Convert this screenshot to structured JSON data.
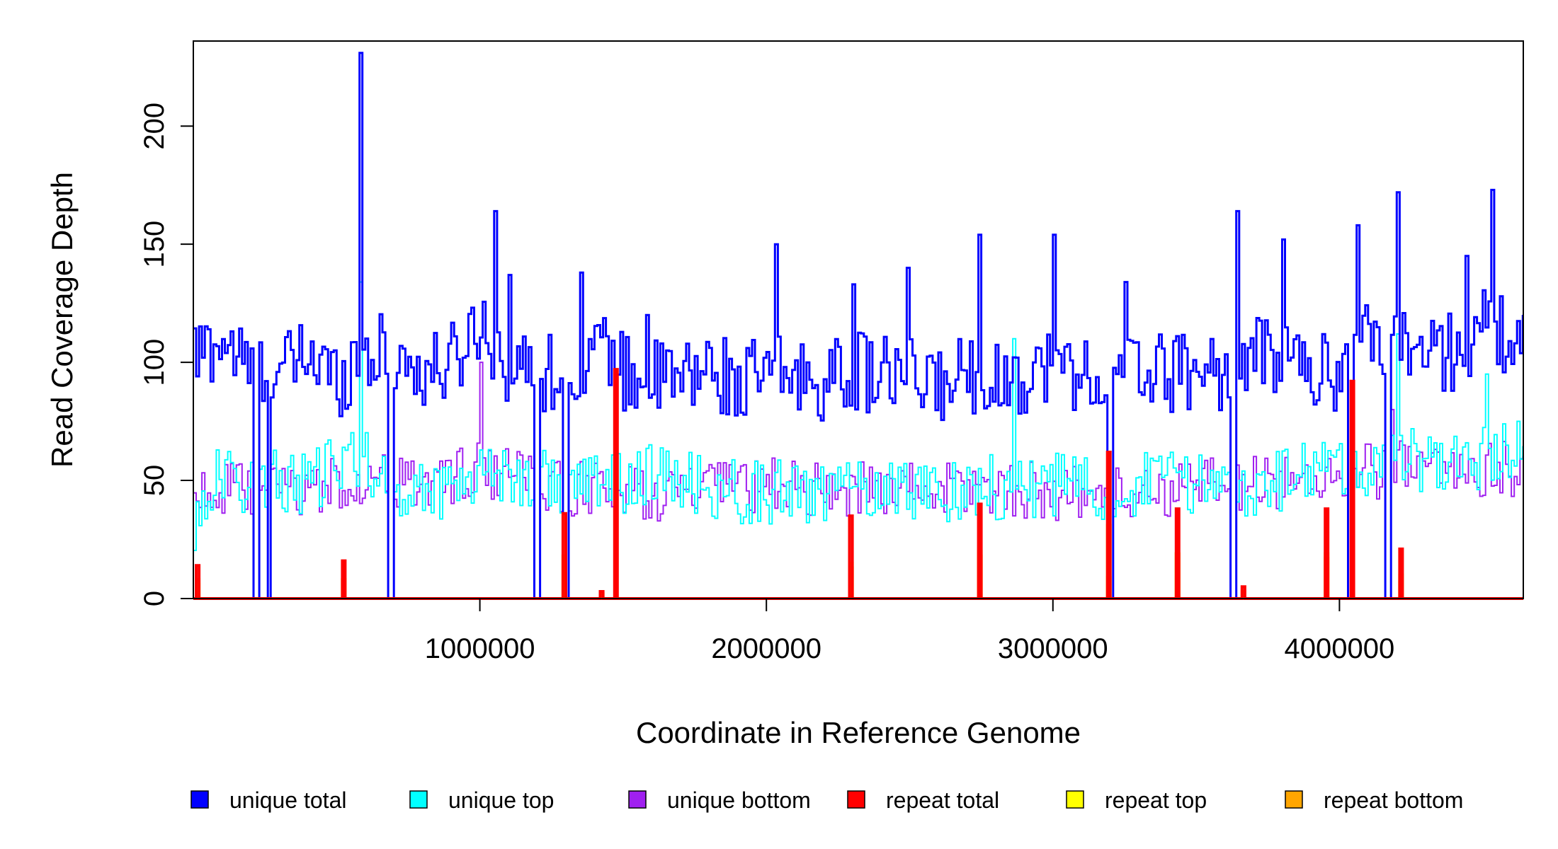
{
  "chart_data": {
    "type": "line",
    "title": "",
    "xlabel": "Coordinate in Reference Genome",
    "ylabel": "Read Coverage Depth",
    "xlim": [
      0,
      4641652
    ],
    "ylim": [
      0,
      236
    ],
    "x_ticks": [
      1000000,
      2000000,
      3000000,
      4000000
    ],
    "x_tick_labels": [
      "1000000",
      "2000000",
      "3000000",
      "4000000"
    ],
    "y_ticks": [
      0,
      50,
      100,
      150,
      200
    ],
    "y_tick_labels": [
      "0",
      "50",
      "100",
      "150",
      "200"
    ],
    "grid": false,
    "legend_position": "bottom",
    "bin_size": 10000,
    "series": [
      {
        "name": "unique total",
        "color": "#0000FF",
        "anchors": [
          [
            0,
            102
          ],
          [
            100000,
            110
          ],
          [
            200000,
            95
          ],
          [
            300000,
            95
          ],
          [
            400000,
            104
          ],
          [
            500000,
            92
          ],
          [
            580000,
            105
          ],
          [
            700000,
            103
          ],
          [
            800000,
            95
          ],
          [
            900000,
            100
          ],
          [
            1000000,
            118
          ],
          [
            1100000,
            98
          ],
          [
            1200000,
            95
          ],
          [
            1300000,
            98
          ],
          [
            1400000,
            108
          ],
          [
            1500000,
            95
          ],
          [
            1600000,
            93
          ],
          [
            1700000,
            92
          ],
          [
            1800000,
            98
          ],
          [
            1900000,
            90
          ],
          [
            2000000,
            95
          ],
          [
            2100000,
            94
          ],
          [
            2200000,
            92
          ],
          [
            2300000,
            96
          ],
          [
            2400000,
            95
          ],
          [
            2500000,
            93
          ],
          [
            2600000,
            90
          ],
          [
            2700000,
            96
          ],
          [
            2800000,
            92
          ],
          [
            2900000,
            95
          ],
          [
            3000000,
            100
          ],
          [
            3100000,
            95
          ],
          [
            3200000,
            92
          ],
          [
            3300000,
            98
          ],
          [
            3400000,
            95
          ],
          [
            3500000,
            98
          ],
          [
            3600000,
            96
          ],
          [
            3700000,
            102
          ],
          [
            3800000,
            105
          ],
          [
            3900000,
            96
          ],
          [
            4000000,
            95
          ],
          [
            4100000,
            110
          ],
          [
            4200000,
            112
          ],
          [
            4300000,
            102
          ],
          [
            4400000,
            105
          ],
          [
            4500000,
            115
          ],
          [
            4641652,
            108
          ]
        ],
        "amplitude": 17,
        "peaks": [
          [
            580000,
            231
          ],
          [
            1050000,
            164
          ],
          [
            1100000,
            137
          ],
          [
            1350000,
            138
          ],
          [
            1580000,
            120
          ],
          [
            2030000,
            150
          ],
          [
            2300000,
            133
          ],
          [
            2490000,
            140
          ],
          [
            2740000,
            154
          ],
          [
            3000000,
            154
          ],
          [
            3250000,
            134
          ],
          [
            3640000,
            164
          ],
          [
            3800000,
            152
          ],
          [
            4060000,
            158
          ],
          [
            4200000,
            172
          ],
          [
            4530000,
            173
          ],
          [
            4440000,
            145
          ]
        ]
      },
      {
        "name": "unique top",
        "color": "#00FFFF",
        "anchors": [
          [
            0,
            30
          ],
          [
            60000,
            50
          ],
          [
            200000,
            50
          ],
          [
            400000,
            48
          ],
          [
            580000,
            62
          ],
          [
            700000,
            45
          ],
          [
            900000,
            48
          ],
          [
            1000000,
            55
          ],
          [
            1200000,
            50
          ],
          [
            1400000,
            48
          ],
          [
            1600000,
            52
          ],
          [
            1800000,
            46
          ],
          [
            2000000,
            45
          ],
          [
            2200000,
            44
          ],
          [
            2400000,
            48
          ],
          [
            2600000,
            46
          ],
          [
            2800000,
            47
          ],
          [
            3000000,
            48
          ],
          [
            3200000,
            46
          ],
          [
            3400000,
            50
          ],
          [
            3600000,
            48
          ],
          [
            3800000,
            50
          ],
          [
            4000000,
            55
          ],
          [
            4200000,
            58
          ],
          [
            4400000,
            58
          ],
          [
            4641652,
            62
          ]
        ],
        "amplitude": 14,
        "peaks": [
          [
            580000,
            134
          ],
          [
            4200000,
            112
          ],
          [
            4510000,
            95
          ],
          [
            2860000,
            110
          ]
        ]
      },
      {
        "name": "unique bottom",
        "color": "#A020F0",
        "anchors": [
          [
            0,
            46
          ],
          [
            200000,
            45
          ],
          [
            400000,
            46
          ],
          [
            580000,
            50
          ],
          [
            800000,
            48
          ],
          [
            1000000,
            55
          ],
          [
            1200000,
            48
          ],
          [
            1400000,
            46
          ],
          [
            1600000,
            44
          ],
          [
            1800000,
            46
          ],
          [
            2000000,
            48
          ],
          [
            2200000,
            46
          ],
          [
            2400000,
            47
          ],
          [
            2600000,
            46
          ],
          [
            2800000,
            47
          ],
          [
            3000000,
            45
          ],
          [
            3200000,
            44
          ],
          [
            3400000,
            46
          ],
          [
            3600000,
            48
          ],
          [
            3800000,
            50
          ],
          [
            4000000,
            52
          ],
          [
            4200000,
            55
          ],
          [
            4400000,
            55
          ],
          [
            4641652,
            55
          ]
        ],
        "amplitude": 12,
        "peaks": [
          [
            4180000,
            80
          ],
          [
            1000000,
            100
          ]
        ]
      },
      {
        "name": "repeat total",
        "color": "#FF0000",
        "baseline": 0,
        "peaks": [
          [
            10000,
            14
          ],
          [
            520000,
            16
          ],
          [
            1290000,
            36
          ],
          [
            1420000,
            3
          ],
          [
            1470000,
            97
          ],
          [
            2290000,
            35
          ],
          [
            2740000,
            40
          ],
          [
            3190000,
            62
          ],
          [
            3430000,
            38
          ],
          [
            3660000,
            5
          ],
          [
            3950000,
            38
          ],
          [
            4040000,
            92
          ],
          [
            4210000,
            21
          ]
        ]
      },
      {
        "name": "repeat top",
        "color": "#FFFF00",
        "baseline": 0,
        "peaks": [
          [
            10000,
            6
          ],
          [
            520000,
            8
          ],
          [
            1290000,
            18
          ],
          [
            2290000,
            15
          ],
          [
            2740000,
            20
          ],
          [
            3190000,
            31
          ],
          [
            3430000,
            19
          ],
          [
            3950000,
            19
          ],
          [
            4210000,
            10
          ]
        ]
      },
      {
        "name": "repeat bottom",
        "color": "#FFA500",
        "baseline": 0,
        "peaks": [
          [
            10000,
            8
          ],
          [
            520000,
            8
          ],
          [
            1290000,
            18
          ],
          [
            1420000,
            2
          ],
          [
            2290000,
            13
          ],
          [
            2740000,
            18
          ],
          [
            3190000,
            9
          ],
          [
            3430000,
            19
          ],
          [
            3660000,
            3
          ],
          [
            3950000,
            17
          ],
          [
            4210000,
            7
          ]
        ]
      }
    ],
    "gaps": [
      [
        210000,
        230000
      ],
      [
        260000,
        270000
      ],
      [
        680000,
        700000
      ],
      [
        1190000,
        1210000
      ],
      [
        1290000,
        1310000
      ],
      [
        1470000,
        1480000
      ],
      [
        3190000,
        3210000
      ],
      [
        3620000,
        3640000
      ],
      [
        4030000,
        4050000
      ],
      [
        4160000,
        4180000
      ]
    ],
    "legend": [
      {
        "label": "unique total",
        "color": "#0000FF"
      },
      {
        "label": "unique top",
        "color": "#00FFFF"
      },
      {
        "label": "unique bottom",
        "color": "#A020F0"
      },
      {
        "label": "repeat total",
        "color": "#FF0000"
      },
      {
        "label": "repeat top",
        "color": "#FFFF00"
      },
      {
        "label": "repeat bottom",
        "color": "#FFA500"
      }
    ]
  }
}
